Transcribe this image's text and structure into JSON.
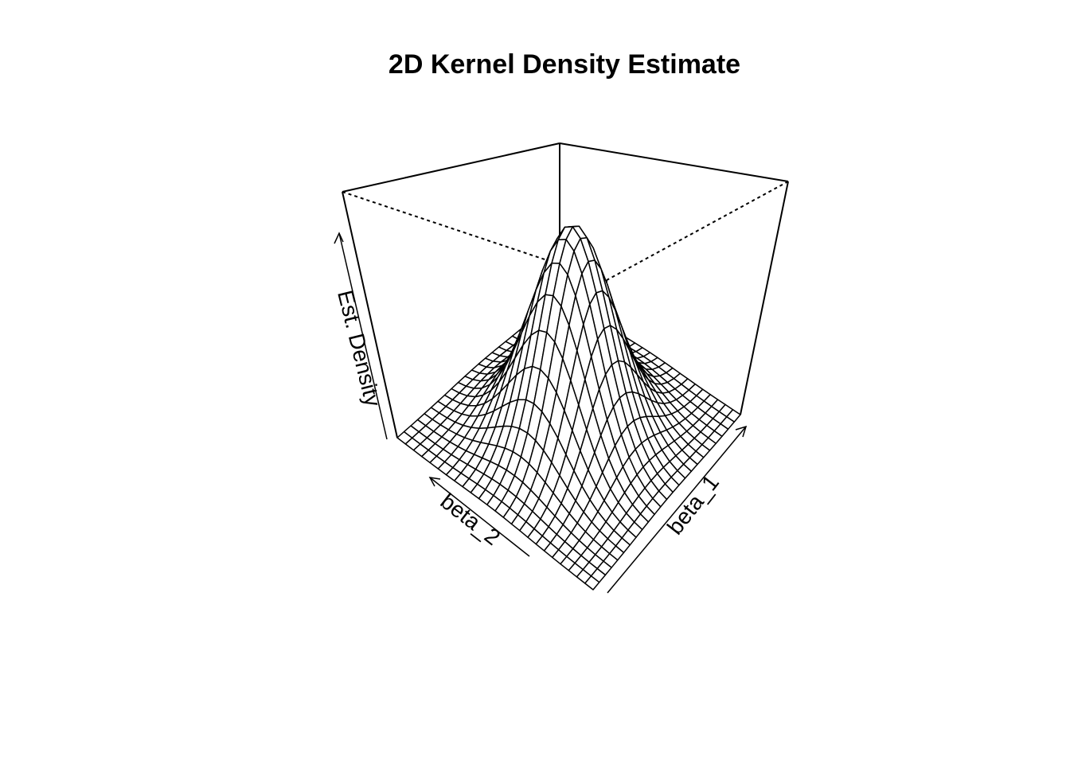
{
  "chart_data": {
    "type": "surface",
    "title": "2D Kernel Density Estimate",
    "xlabel": "beta_1",
    "ylabel": "beta_2",
    "zlabel": "Est. Density",
    "grid_size": 25,
    "surface": {
      "shape": "bivariate-gaussian",
      "peak_location": "center",
      "spread_sigma": 0.17,
      "peak_relative_height": 1.0
    },
    "axes_ticks": "none",
    "box": true
  }
}
